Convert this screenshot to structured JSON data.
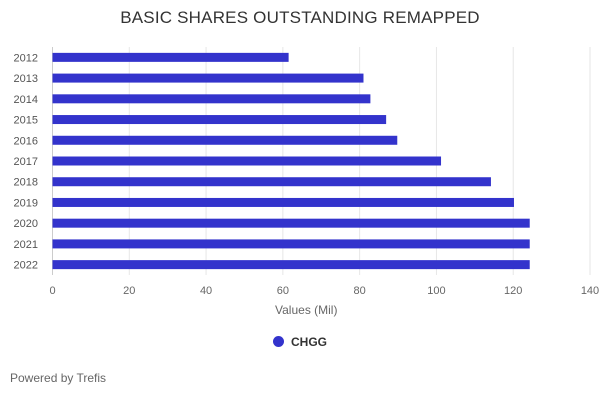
{
  "chart_data": {
    "type": "bar",
    "orientation": "horizontal",
    "title": "BASIC SHARES OUTSTANDING REMAPPED",
    "categories": [
      "2012",
      "2013",
      "2014",
      "2015",
      "2016",
      "2017",
      "2018",
      "2019",
      "2020",
      "2021",
      "2022"
    ],
    "series": [
      {
        "name": "CHGG",
        "color": "#3333cc",
        "values": [
          61.5,
          81.0,
          82.8,
          86.9,
          89.8,
          101.2,
          114.2,
          120.2,
          124.3,
          124.3,
          124.3
        ]
      }
    ],
    "xlabel": "Values (Mil)",
    "ylabel": "",
    "xlim": [
      0,
      140
    ],
    "xticks": [
      0,
      20,
      40,
      60,
      80,
      100,
      120,
      140
    ],
    "grid": true,
    "legend": "bottom-center"
  },
  "footer": "Powered by Trefis"
}
